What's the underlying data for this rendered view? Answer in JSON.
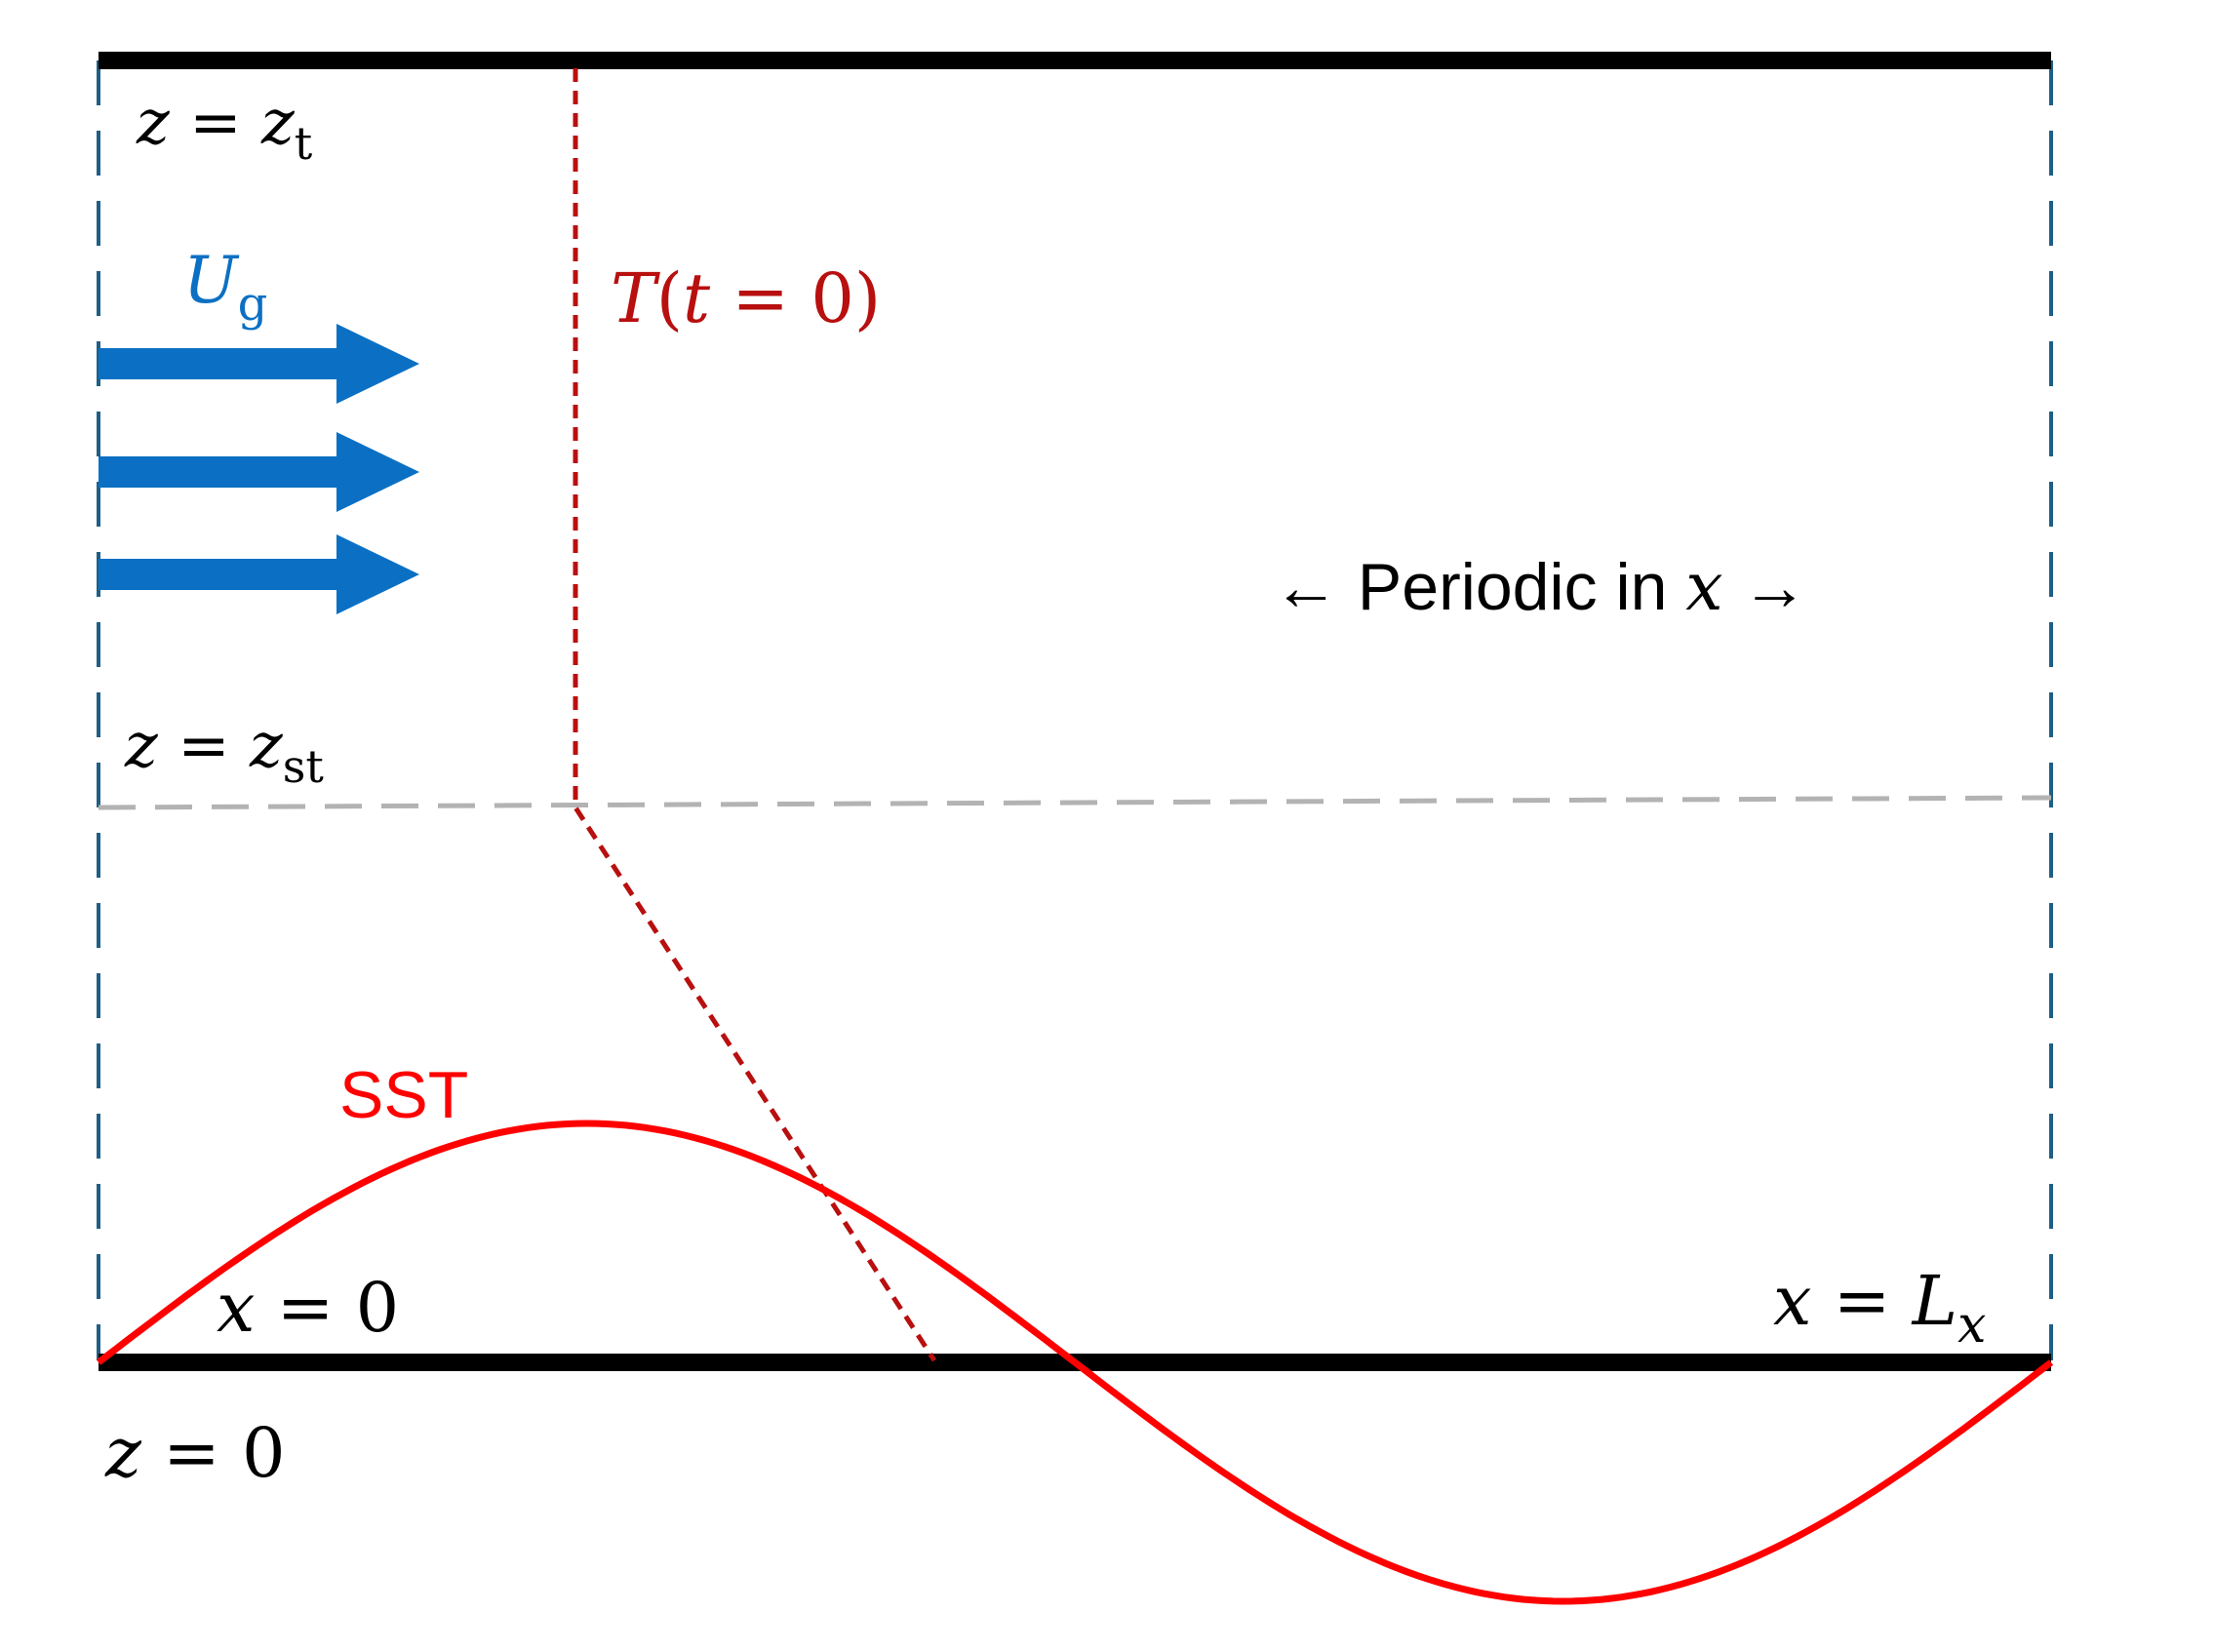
{
  "labels": {
    "z_top": {
      "var": "z",
      "eq": " = ",
      "base": "z",
      "sub": "t"
    },
    "z_st": {
      "var": "z",
      "eq": " = ",
      "base": "z",
      "sub": "st"
    },
    "z_bottom": {
      "var": "z",
      "eq": " = ",
      "value": "0"
    },
    "x_zero": {
      "var": "x",
      "eq": " = ",
      "value": "0"
    },
    "x_end": {
      "var": "x",
      "eq": " = ",
      "base": "L",
      "sub": "x"
    },
    "wind": {
      "base": "U",
      "sub": "g"
    },
    "initial_temp": {
      "pre": "T",
      "open": "(",
      "var": "t",
      "eq": " = ",
      "value": "0",
      "close": ")"
    },
    "periodic": {
      "left_arrow": "←",
      "text": " Periodic in ",
      "var": "x",
      "right_arrow": " →"
    },
    "sst": "SST"
  },
  "colors": {
    "boundary": "#000000",
    "periodic_side": "#1f5f86",
    "wind_arrow": "#0b70c3",
    "temperature_profile": "#b80f0f",
    "sst_curve": "#ff0000",
    "stratosphere_line": "#b3b3b3",
    "text": "#000000"
  }
}
